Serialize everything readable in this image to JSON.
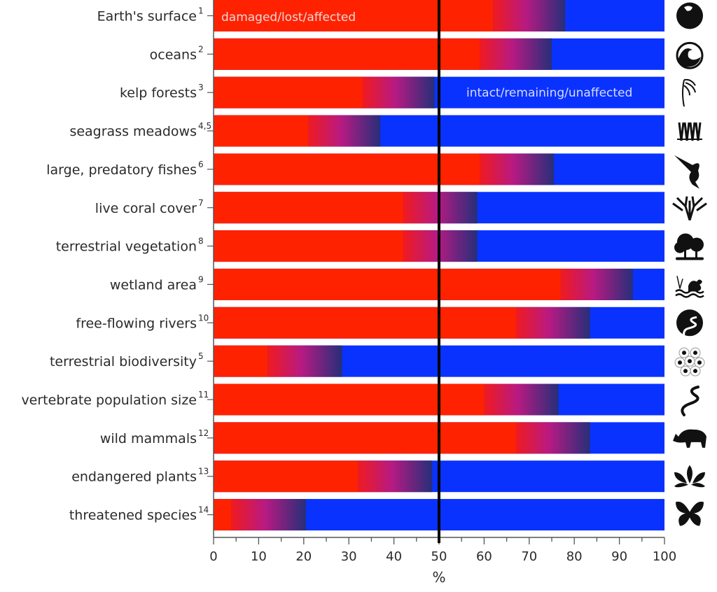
{
  "chart_data": {
    "type": "bar",
    "orientation": "horizontal",
    "stacked": true,
    "title": "",
    "xlabel": "%",
    "ylabel": "",
    "xlim": [
      0,
      100
    ],
    "xticks": [
      0,
      10,
      20,
      30,
      40,
      50,
      60,
      70,
      80,
      90,
      100
    ],
    "reference_line": 50,
    "grid": false,
    "colors": {
      "damaged": "#ff2200",
      "gradient_start": "#f01a20",
      "gradient_mid": "#b81a82",
      "gradient_end": "#262f7a",
      "intact": "#0a32ff",
      "reference_line": "#000000"
    },
    "annotations": {
      "damaged": "damaged/lost/affected",
      "intact": "intact/remaining/unaffected"
    },
    "legend": "none",
    "categories": [
      {
        "label": "Earth's surface",
        "ref": "1",
        "icon": "globe-icon"
      },
      {
        "label": "oceans",
        "ref": "2",
        "icon": "wave-icon"
      },
      {
        "label": "kelp forests",
        "ref": "3",
        "icon": "kelp-icon"
      },
      {
        "label": "seagrass meadows",
        "ref": "4,5",
        "icon": "seagrass-icon"
      },
      {
        "label": "large, predatory fishes",
        "ref": "6",
        "icon": "marlin-icon"
      },
      {
        "label": "live coral cover",
        "ref": "7",
        "icon": "coral-icon"
      },
      {
        "label": "terrestrial vegetation",
        "ref": "8",
        "icon": "trees-icon"
      },
      {
        "label": "wetland area",
        "ref": "9",
        "icon": "wetland-duck-icon"
      },
      {
        "label": "free-flowing rivers",
        "ref": "10",
        "icon": "river-icon"
      },
      {
        "label": "terrestrial biodiversity",
        "ref": "5",
        "icon": "biodiversity-icon"
      },
      {
        "label": "vertebrate population size",
        "ref": "11",
        "icon": "snake-icon"
      },
      {
        "label": "wild mammals",
        "ref": "12",
        "icon": "rhino-icon"
      },
      {
        "label": "endangered plants",
        "ref": "13",
        "icon": "lotus-icon"
      },
      {
        "label": "threatened species",
        "ref": "14",
        "icon": "butterfly-icon"
      }
    ],
    "series": [
      {
        "name": "damaged/lost/affected (lower estimate)",
        "values": [
          62,
          59,
          33,
          21,
          59,
          42,
          42,
          77,
          67,
          12,
          60,
          67,
          32,
          4
        ]
      },
      {
        "name": "damaged/lost/affected (upper estimate)",
        "values": [
          78,
          75,
          49,
          37,
          75.5,
          58.5,
          58.5,
          93,
          83.5,
          28.5,
          76.5,
          83.5,
          48.5,
          20.5
        ]
      },
      {
        "name": "intact/remaining/unaffected (total)",
        "values": [
          100,
          100,
          100,
          100,
          100,
          100,
          100,
          100,
          100,
          100,
          100,
          100,
          100,
          100
        ]
      }
    ]
  }
}
